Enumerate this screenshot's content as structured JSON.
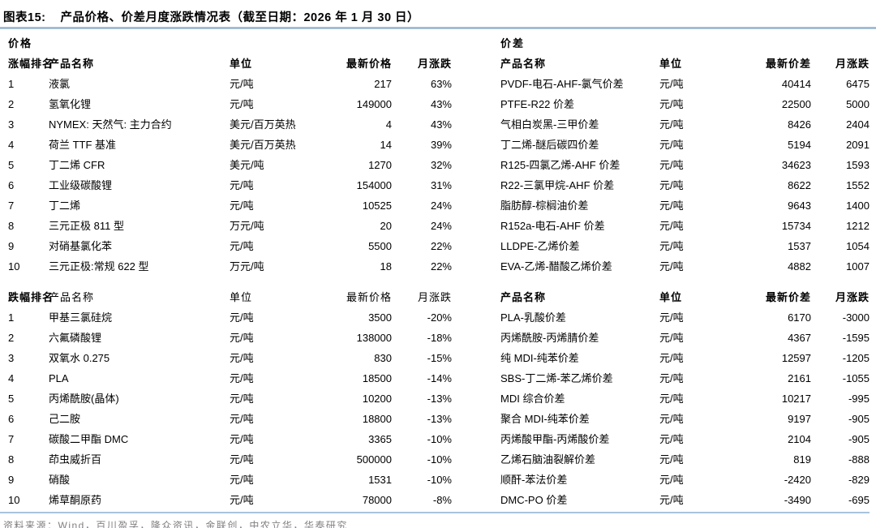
{
  "header": {
    "figure_label": "图表15:",
    "title": "产品价格、价差月度涨跌情况表（截至日期：2026 年 1 月 30 日）"
  },
  "columns": {
    "rank_up": "涨幅排名",
    "rank_down": "跌幅排名",
    "product": "产品名称",
    "unit": "单位",
    "latest_price": "最新价格",
    "latest_spread": "最新价差",
    "monthly_change": "月涨跌"
  },
  "price": {
    "heading": "价格",
    "gainers": [
      {
        "rank": "1",
        "name": "液氯",
        "unit": "元/吨",
        "value": "217",
        "change": "63%"
      },
      {
        "rank": "2",
        "name": "氢氧化锂",
        "unit": "元/吨",
        "value": "149000",
        "change": "43%"
      },
      {
        "rank": "3",
        "name": "NYMEX: 天然气: 主力合约",
        "unit": "美元/百万英热",
        "value": "4",
        "change": "43%"
      },
      {
        "rank": "4",
        "name": "荷兰 TTF 基准",
        "unit": "美元/百万英热",
        "value": "14",
        "change": "39%"
      },
      {
        "rank": "5",
        "name": "丁二烯 CFR",
        "unit": "美元/吨",
        "value": "1270",
        "change": "32%"
      },
      {
        "rank": "6",
        "name": "工业级碳酸锂",
        "unit": "元/吨",
        "value": "154000",
        "change": "31%"
      },
      {
        "rank": "7",
        "name": "丁二烯",
        "unit": "元/吨",
        "value": "10525",
        "change": "24%"
      },
      {
        "rank": "8",
        "name": "三元正极 811 型",
        "unit": "万元/吨",
        "value": "20",
        "change": "24%"
      },
      {
        "rank": "9",
        "name": "对硝基氯化苯",
        "unit": "元/吨",
        "value": "5500",
        "change": "22%"
      },
      {
        "rank": "10",
        "name": "三元正极:常规 622 型",
        "unit": "万元/吨",
        "value": "18",
        "change": "22%"
      }
    ],
    "losers": [
      {
        "rank": "1",
        "name": "甲基三氯硅烷",
        "unit": "元/吨",
        "value": "3500",
        "change": "-20%"
      },
      {
        "rank": "2",
        "name": "六氟磷酸锂",
        "unit": "元/吨",
        "value": "138000",
        "change": "-18%"
      },
      {
        "rank": "3",
        "name": "双氧水 0.275",
        "unit": "元/吨",
        "value": "830",
        "change": "-15%"
      },
      {
        "rank": "4",
        "name": "PLA",
        "unit": "元/吨",
        "value": "18500",
        "change": "-14%"
      },
      {
        "rank": "5",
        "name": "丙烯酰胺(晶体)",
        "unit": "元/吨",
        "value": "10200",
        "change": "-13%"
      },
      {
        "rank": "6",
        "name": "己二胺",
        "unit": "元/吨",
        "value": "18800",
        "change": "-13%"
      },
      {
        "rank": "7",
        "name": "碳酸二甲酯 DMC",
        "unit": "元/吨",
        "value": "3365",
        "change": "-10%"
      },
      {
        "rank": "8",
        "name": "茚虫威折百",
        "unit": "元/吨",
        "value": "500000",
        "change": "-10%"
      },
      {
        "rank": "9",
        "name": "硝酸",
        "unit": "元/吨",
        "value": "1531",
        "change": "-10%"
      },
      {
        "rank": "10",
        "name": "烯草酮原药",
        "unit": "元/吨",
        "value": "78000",
        "change": "-8%"
      }
    ]
  },
  "spread": {
    "heading": "价差",
    "gainers": [
      {
        "name": "PVDF-电石-AHF-氯气价差",
        "unit": "元/吨",
        "value": "40414",
        "change": "6475"
      },
      {
        "name": "PTFE-R22 价差",
        "unit": "元/吨",
        "value": "22500",
        "change": "5000"
      },
      {
        "name": "气相白炭黑-三甲价差",
        "unit": "元/吨",
        "value": "8426",
        "change": "2404"
      },
      {
        "name": "丁二烯-醚后碳四价差",
        "unit": "元/吨",
        "value": "5194",
        "change": "2091"
      },
      {
        "name": "R125-四氯乙烯-AHF 价差",
        "unit": "元/吨",
        "value": "34623",
        "change": "1593"
      },
      {
        "name": "R22-三氯甲烷-AHF 价差",
        "unit": "元/吨",
        "value": "8622",
        "change": "1552"
      },
      {
        "name": "脂肪醇-棕榈油价差",
        "unit": "元/吨",
        "value": "9643",
        "change": "1400"
      },
      {
        "name": "R152a-电石-AHF 价差",
        "unit": "元/吨",
        "value": "15734",
        "change": "1212"
      },
      {
        "name": "LLDPE-乙烯价差",
        "unit": "元/吨",
        "value": "1537",
        "change": "1054"
      },
      {
        "name": "EVA-乙烯-醋酸乙烯价差",
        "unit": "元/吨",
        "value": "4882",
        "change": "1007"
      }
    ],
    "losers": [
      {
        "name": "PLA-乳酸价差",
        "unit": "元/吨",
        "value": "6170",
        "change": "-3000"
      },
      {
        "name": "丙烯酰胺-丙烯腈价差",
        "unit": "元/吨",
        "value": "4367",
        "change": "-1595"
      },
      {
        "name": "纯 MDI-纯苯价差",
        "unit": "元/吨",
        "value": "12597",
        "change": "-1205"
      },
      {
        "name": "SBS-丁二烯-苯乙烯价差",
        "unit": "元/吨",
        "value": "2161",
        "change": "-1055"
      },
      {
        "name": "MDI 综合价差",
        "unit": "元/吨",
        "value": "10217",
        "change": "-995"
      },
      {
        "name": "聚合 MDI-纯苯价差",
        "unit": "元/吨",
        "value": "9197",
        "change": "-905"
      },
      {
        "name": "丙烯酸甲酯-丙烯酸价差",
        "unit": "元/吨",
        "value": "2104",
        "change": "-905"
      },
      {
        "name": "乙烯石脑油裂解价差",
        "unit": "元/吨",
        "value": "819",
        "change": "-888"
      },
      {
        "name": "顺酐-苯法价差",
        "unit": "元/吨",
        "value": "-2420",
        "change": "-829"
      },
      {
        "name": "DMC-PO 价差",
        "unit": "元/吨",
        "value": "-3490",
        "change": "-695"
      }
    ]
  },
  "footer": {
    "source": "资料来源：Wind，百川盈孚，隆众资讯，金联创，中农立华，华泰研究"
  },
  "colors": {
    "accent_line": "#7fa3c2",
    "bottom_line": "#a9c4dc",
    "footer_text": "#808080",
    "text": "#000000"
  }
}
